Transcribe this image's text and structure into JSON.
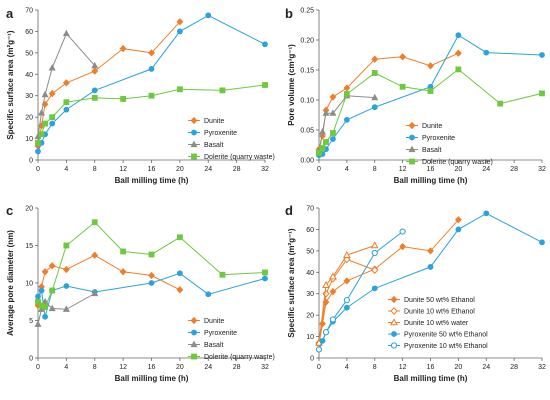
{
  "chart_data": [
    {
      "panel": "a",
      "type": "line",
      "xlabel": "Ball milling time (h)",
      "ylabel": "Specific surface area (m²g⁻¹)",
      "xlim": [
        0,
        32
      ],
      "xticks": [
        0,
        4,
        8,
        12,
        16,
        20,
        24,
        28,
        32
      ],
      "ylim": [
        0,
        70
      ],
      "yticks": [
        0,
        10,
        20,
        30,
        40,
        50,
        60,
        70
      ],
      "legend": "bottom-right",
      "series": [
        {
          "name": "Dunite",
          "color": "#f07d28",
          "marker": "diamond",
          "filled": true,
          "x": [
            0,
            0.5,
            1,
            2,
            4,
            8,
            12,
            16,
            20
          ],
          "y": [
            6.5,
            16,
            26,
            31,
            36,
            41.5,
            52,
            50,
            64.5
          ]
        },
        {
          "name": "Pyroxenite",
          "color": "#29a3dd",
          "marker": "circle",
          "filled": true,
          "x": [
            0,
            0.5,
            1,
            2,
            4,
            8,
            16,
            20,
            24,
            32
          ],
          "y": [
            4,
            8,
            12,
            17,
            23.5,
            32.5,
            42.5,
            60,
            67.5,
            54
          ]
        },
        {
          "name": "Basalt",
          "color": "#8c8c8c",
          "marker": "triangle",
          "filled": true,
          "x": [
            0,
            0.5,
            1,
            2,
            4,
            8
          ],
          "y": [
            11,
            22,
            30.5,
            43,
            59,
            44
          ]
        },
        {
          "name": "Dolerite (quarry waste)",
          "color": "#6dc93d",
          "marker": "square",
          "filled": true,
          "x": [
            0,
            0.5,
            1,
            2,
            4,
            8,
            12,
            16,
            20,
            26,
            32
          ],
          "y": [
            8,
            12,
            17,
            20,
            27,
            29,
            28.5,
            30,
            33,
            32.5,
            35
          ]
        }
      ]
    },
    {
      "panel": "b",
      "type": "line",
      "xlabel": "Ball milling time (h)",
      "ylabel": "Pore volume (cm³g⁻¹)",
      "xlim": [
        0,
        32
      ],
      "xticks": [
        0,
        4,
        8,
        12,
        16,
        20,
        24,
        28,
        32
      ],
      "ylim": [
        0,
        0.25
      ],
      "yticks": [
        0,
        0.05,
        0.1,
        0.15,
        0.2,
        0.25
      ],
      "ytick_labels": [
        "0.00",
        "0.05",
        "0.10",
        "0.15",
        "0.20",
        "0.25"
      ],
      "legend": "bottom-right",
      "series": [
        {
          "name": "Dunite",
          "color": "#f07d28",
          "marker": "diamond",
          "filled": true,
          "x": [
            0,
            0.5,
            1,
            2,
            4,
            8,
            12,
            16,
            20
          ],
          "y": [
            0.018,
            0.04,
            0.083,
            0.105,
            0.12,
            0.168,
            0.172,
            0.157,
            0.178
          ]
        },
        {
          "name": "Pyroxenite",
          "color": "#29a3dd",
          "marker": "circle",
          "filled": true,
          "x": [
            0,
            0.5,
            1,
            2,
            4,
            8,
            16,
            20,
            24,
            32
          ],
          "y": [
            0.008,
            0.01,
            0.018,
            0.035,
            0.067,
            0.088,
            0.122,
            0.208,
            0.179,
            0.175
          ]
        },
        {
          "name": "Basalt",
          "color": "#8c8c8c",
          "marker": "triangle",
          "filled": true,
          "x": [
            0,
            0.5,
            1,
            2,
            4,
            8
          ],
          "y": [
            0.014,
            0.047,
            0.078,
            0.078,
            0.107,
            0.104
          ]
        },
        {
          "name": "Dolerite (quarry waste)",
          "color": "#6dc93d",
          "marker": "square",
          "filled": true,
          "x": [
            0,
            0.5,
            1,
            2,
            4,
            8,
            12,
            16,
            20,
            26,
            32
          ],
          "y": [
            0.012,
            0.02,
            0.03,
            0.045,
            0.11,
            0.145,
            0.122,
            0.115,
            0.151,
            0.094,
            0.111
          ]
        }
      ]
    },
    {
      "panel": "c",
      "type": "line",
      "xlabel": "Ball milling time (h)",
      "ylabel": "Average pore diameter (nm)",
      "xlim": [
        0,
        32
      ],
      "xticks": [
        0,
        4,
        8,
        12,
        16,
        20,
        24,
        28,
        32
      ],
      "ylim": [
        0,
        20
      ],
      "yticks": [
        0,
        5,
        10,
        15,
        20
      ],
      "legend": "bottom-right",
      "series": [
        {
          "name": "Dunite",
          "color": "#f07d28",
          "marker": "diamond",
          "filled": true,
          "x": [
            0,
            0.5,
            1,
            2,
            4,
            8,
            12,
            16,
            20
          ],
          "y": [
            7,
            9.5,
            11.5,
            12.3,
            11.8,
            13.7,
            11.5,
            11,
            9.1
          ]
        },
        {
          "name": "Pyroxenite",
          "color": "#29a3dd",
          "marker": "circle",
          "filled": true,
          "x": [
            0,
            0.5,
            1,
            2,
            4,
            8,
            16,
            20,
            24,
            32
          ],
          "y": [
            8.2,
            9,
            5.5,
            9,
            9.6,
            8.8,
            10,
            11.3,
            8.5,
            10.6
          ]
        },
        {
          "name": "Basalt",
          "color": "#8c8c8c",
          "marker": "triangle",
          "filled": true,
          "x": [
            0,
            0.5,
            1,
            2,
            4,
            8
          ],
          "y": [
            4.5,
            6.5,
            7.5,
            6.6,
            6.5,
            8.6
          ]
        },
        {
          "name": "Dolerite (quarry waste)",
          "color": "#6dc93d",
          "marker": "square",
          "filled": true,
          "x": [
            0,
            0.5,
            1,
            2,
            4,
            8,
            12,
            16,
            20,
            26,
            32
          ],
          "y": [
            7.5,
            7,
            6.8,
            9,
            15,
            18.1,
            14.2,
            13.8,
            16.1,
            11.1,
            11.4
          ]
        }
      ]
    },
    {
      "panel": "d",
      "type": "line",
      "xlabel": "Ball milling time (h)",
      "ylabel": "Specific surface area (m²g⁻¹)",
      "xlim": [
        0,
        32
      ],
      "xticks": [
        0,
        4,
        8,
        12,
        16,
        20,
        24,
        28,
        32
      ],
      "ylim": [
        0,
        70
      ],
      "yticks": [
        0,
        10,
        20,
        30,
        40,
        50,
        60,
        70
      ],
      "legend": "bottom-right",
      "series": [
        {
          "name": "Dunite 50 wt% Ethanol",
          "color": "#f07d28",
          "marker": "diamond",
          "filled": true,
          "x": [
            0,
            0.5,
            1,
            2,
            4,
            8,
            12,
            16,
            20
          ],
          "y": [
            6.5,
            16,
            26,
            31,
            36,
            41.5,
            52,
            50,
            64.5
          ]
        },
        {
          "name": "Dunite 10 wt% Ethanol",
          "color": "#f07d28",
          "marker": "diamond",
          "filled": false,
          "x": [
            0,
            1,
            2,
            4,
            8
          ],
          "y": [
            7,
            30,
            37,
            46,
            41
          ]
        },
        {
          "name": "Dunite 10 wt% water",
          "color": "#f07d28",
          "marker": "triangle",
          "filled": false,
          "x": [
            0,
            1,
            2,
            4,
            8
          ],
          "y": [
            7,
            34,
            38,
            48,
            52.5
          ]
        },
        {
          "name": "Pyroxenite 50 wt% Ethanol",
          "color": "#29a3dd",
          "marker": "circle",
          "filled": true,
          "x": [
            0,
            0.5,
            1,
            2,
            4,
            8,
            16,
            20,
            24,
            32
          ],
          "y": [
            4,
            8,
            12,
            17,
            23.5,
            32.5,
            42.5,
            60,
            67.5,
            54
          ]
        },
        {
          "name": "Pyroxenite 10 wt% Ethanol",
          "color": "#29a3dd",
          "marker": "circle",
          "filled": false,
          "x": [
            0,
            1,
            2,
            4,
            8,
            12
          ],
          "y": [
            4,
            12,
            18,
            27,
            49,
            59
          ]
        }
      ]
    }
  ]
}
